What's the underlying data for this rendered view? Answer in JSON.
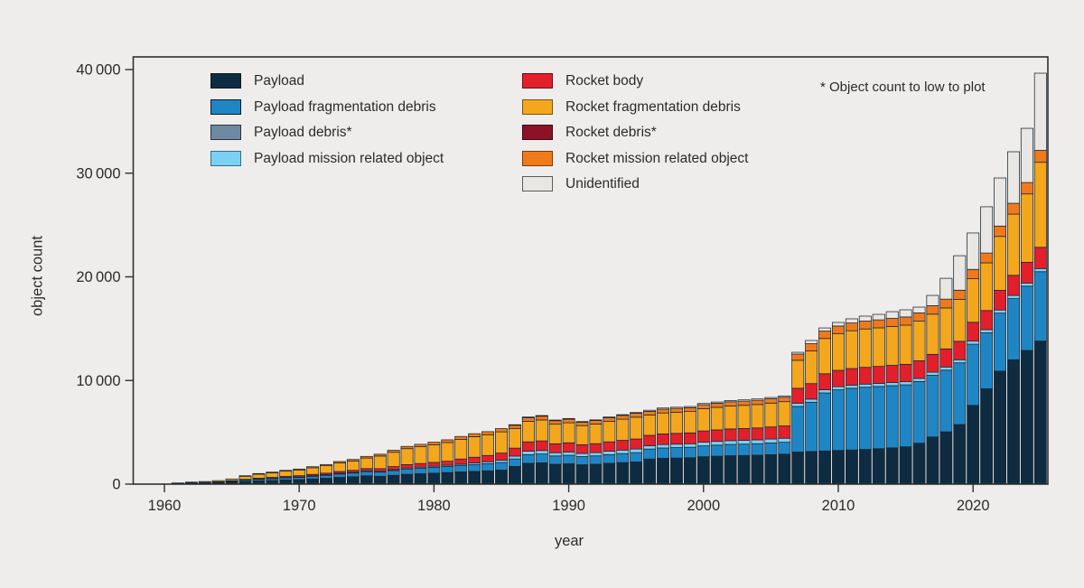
{
  "figure": {
    "title": "",
    "y_axis_label": "object count",
    "x_axis_label": "year",
    "note": "* Object count to low to plot",
    "background_color": "#eeedeb",
    "frame_color": "#2f2f2f",
    "bar_outline_color": "#17242f",
    "text_color": "#2b2b2b"
  },
  "axes": {
    "y_ticks": [
      {
        "value": 0,
        "label": "0"
      },
      {
        "value": 10000,
        "label": "10 000"
      },
      {
        "value": 20000,
        "label": "20 000"
      },
      {
        "value": 30000,
        "label": "30 000"
      },
      {
        "value": 40000,
        "label": "40 000"
      }
    ],
    "x_ticks": [
      {
        "value": 1960,
        "label": "1960"
      },
      {
        "value": 1970,
        "label": "1970"
      },
      {
        "value": 1980,
        "label": "1980"
      },
      {
        "value": 1990,
        "label": "1990"
      },
      {
        "value": 2000,
        "label": "2000"
      },
      {
        "value": 2010,
        "label": "2010"
      },
      {
        "value": 2020,
        "label": "2020"
      }
    ]
  },
  "legend": {
    "columns": [
      {
        "items": [
          {
            "key": "payload",
            "label": "Payload",
            "color": "#0d2c42",
            "border": "#10181f"
          },
          {
            "key": "payload_fragmentation_debris",
            "label": "Payload fragmentation debris",
            "color": "#1f86c6",
            "border": "#10181f"
          },
          {
            "key": "payload_debris",
            "label": "Payload debris*",
            "color": "#6e89a2",
            "border": "#2a3440"
          },
          {
            "key": "payload_mission_related_object",
            "label": "Payload mission related object",
            "color": "#7dd0f2",
            "border": "#2a6f96"
          }
        ]
      },
      {
        "items": [
          {
            "key": "rocket_body",
            "label": "Rocket body",
            "color": "#e31f2b",
            "border": "#6e0e14"
          },
          {
            "key": "rocket_fragmentation_debris",
            "label": "Rocket fragmentation debris",
            "color": "#f4a71c",
            "border": "#7a5410"
          },
          {
            "key": "rocket_debris",
            "label": "Rocket debris*",
            "color": "#8d1228",
            "border": "#3c0811"
          },
          {
            "key": "rocket_mission_related_object",
            "label": "Rocket mission related object",
            "color": "#f07a1b",
            "border": "#7a3c0c"
          },
          {
            "key": "unidentified",
            "label": "Unidentified",
            "color": "#e9e7e3",
            "border": "#5a5a5a"
          }
        ]
      }
    ]
  },
  "chart_data": {
    "type": "bar",
    "stacked": true,
    "title": "",
    "xlabel": "year",
    "ylabel": "object count",
    "ylim": [
      0,
      40000
    ],
    "xlim": [
      1957.5,
      2026
    ],
    "grid": false,
    "legend_position": "inside-top-left",
    "annotation": "* Object count to low to plot",
    "years": [
      1961,
      1962,
      1963,
      1964,
      1965,
      1966,
      1967,
      1968,
      1969,
      1970,
      1971,
      1972,
      1973,
      1974,
      1975,
      1976,
      1977,
      1978,
      1979,
      1980,
      1981,
      1982,
      1983,
      1984,
      1985,
      1986,
      1987,
      1988,
      1989,
      1990,
      1991,
      1992,
      1993,
      1994,
      1995,
      1996,
      1997,
      1998,
      1999,
      2000,
      2001,
      2002,
      2003,
      2004,
      2005,
      2006,
      2007,
      2008,
      2009,
      2010,
      2011,
      2012,
      2013,
      2014,
      2015,
      2016,
      2017,
      2018,
      2019,
      2020,
      2021,
      2022,
      2023,
      2024,
      2025
    ],
    "series": [
      {
        "key": "payload",
        "name": "Payload",
        "color": "#0d2c42",
        "values": [
          55,
          90,
          115,
          155,
          230,
          245,
          306,
          348,
          400,
          437,
          504,
          567,
          654,
          714,
          803,
          754,
          854,
          952,
          1004,
          1058,
          1117,
          1178,
          1231,
          1284,
          1360,
          1710,
          2007,
          2052,
          1917,
          1962,
          1872,
          1922,
          2007,
          2077,
          2142,
          2424,
          2497,
          2523,
          2547,
          2645,
          2695,
          2744,
          2764,
          2793,
          2842,
          2893,
          3100,
          3150,
          3200,
          3250,
          3300,
          3350,
          3420,
          3500,
          3600,
          3950,
          4550,
          5050,
          5750,
          7600,
          9200,
          10900,
          12000,
          12900,
          13800
        ]
      },
      {
        "key": "payload_fragmentation_debris",
        "name": "Payload fragmentation debris",
        "color": "#1f86c6",
        "values": [
          8,
          16,
          21,
          28,
          42,
          120,
          153,
          174,
          200,
          218,
          252,
          284,
          327,
          357,
          401,
          406,
          460,
          512,
          540,
          570,
          601,
          634,
          663,
          692,
          732,
          717,
          842,
          861,
          804,
          823,
          785,
          806,
          842,
          871,
          898,
          963,
          992,
          1002,
          1011,
          1050,
          1070,
          1089,
          1098,
          1109,
          1129,
          1149,
          4400,
          4750,
          5600,
          5850,
          5950,
          6000,
          6000,
          6000,
          5980,
          5950,
          5950,
          5950,
          5950,
          5900,
          5400,
          5600,
          5900,
          6200,
          6700
        ]
      },
      {
        "key": "payload_debris",
        "name": "Payload debris*",
        "color": "#6e89a2",
        "note": "object count too low to plot",
        "values": [
          0,
          0,
          0,
          0,
          0,
          0,
          0,
          0,
          0,
          0,
          0,
          0,
          0,
          0,
          0,
          0,
          0,
          0,
          0,
          0,
          0,
          0,
          0,
          0,
          0,
          0,
          0,
          0,
          0,
          0,
          0,
          0,
          0,
          0,
          0,
          0,
          0,
          0,
          0,
          0,
          0,
          0,
          0,
          0,
          0,
          0,
          0,
          0,
          0,
          0,
          0,
          0,
          0,
          0,
          0,
          0,
          0,
          0,
          0,
          0,
          0,
          0,
          0,
          0,
          0
        ]
      },
      {
        "key": "payload_mission_related_object",
        "name": "Payload mission related object",
        "color": "#7dd0f2",
        "values": [
          2,
          4,
          5,
          7,
          10,
          24,
          31,
          35,
          40,
          44,
          50,
          57,
          65,
          71,
          80,
          73,
          82,
          92,
          97,
          102,
          107,
          113,
          150,
          180,
          220,
          276,
          324,
          331,
          309,
          317,
          302,
          310,
          324,
          335,
          346,
          321,
          331,
          334,
          337,
          350,
          357,
          363,
          366,
          370,
          376,
          383,
          300,
          300,
          300,
          300,
          300,
          300,
          300,
          300,
          300,
          300,
          300,
          300,
          300,
          300,
          300,
          300,
          300,
          300,
          300
        ]
      },
      {
        "key": "rocket_body",
        "name": "Rocket body",
        "color": "#e31f2b",
        "values": [
          12,
          20,
          26,
          35,
          52,
          65,
          82,
          93,
          106,
          116,
          134,
          151,
          174,
          190,
          214,
          261,
          296,
          329,
          347,
          366,
          387,
          500,
          550,
          610,
          680,
          772,
          907,
          927,
          866,
          886,
          846,
          868,
          907,
          938,
          967,
          998,
          1028,
          1039,
          1049,
          1089,
          1110,
          1130,
          1138,
          1150,
          1170,
          1191,
          1450,
          1500,
          1550,
          1580,
          1600,
          1620,
          1640,
          1660,
          1680,
          1700,
          1720,
          1750,
          1780,
          1820,
          1850,
          1900,
          1950,
          2000,
          2050
        ]
      },
      {
        "key": "rocket_fragmentation_debris",
        "name": "Rocket fragmentation debris",
        "color": "#f4a71c",
        "values": [
          38,
          64,
          84,
          112,
          166,
          308,
          387,
          440,
          504,
          552,
          638,
          718,
          828,
          904,
          1016,
          1218,
          1380,
          1537,
          1621,
          1709,
          1804,
          1903,
          1989,
          2000,
          2050,
          1900,
          1975,
          2019,
          1886,
          1931,
          1842,
          1891,
          1975,
          2044,
          2108,
          1961,
          2020,
          2041,
          2060,
          2140,
          2179,
          2219,
          2236,
          2259,
          2299,
          2341,
          2700,
          3150,
          3400,
          3550,
          3650,
          3700,
          3720,
          3750,
          3780,
          3820,
          3880,
          3950,
          4050,
          4200,
          4600,
          5200,
          5900,
          6600,
          8200
        ]
      },
      {
        "key": "rocket_debris",
        "name": "Rocket debris*",
        "color": "#8d1228",
        "note": "object count too low to plot",
        "values": [
          0,
          0,
          0,
          0,
          0,
          0,
          0,
          0,
          0,
          0,
          0,
          0,
          0,
          0,
          0,
          0,
          0,
          0,
          0,
          0,
          0,
          0,
          0,
          0,
          0,
          0,
          0,
          0,
          0,
          0,
          0,
          0,
          0,
          0,
          0,
          0,
          0,
          0,
          0,
          0,
          0,
          0,
          0,
          0,
          0,
          0,
          0,
          0,
          0,
          0,
          0,
          0,
          0,
          0,
          0,
          0,
          0,
          0,
          0,
          0,
          0,
          0,
          0,
          0,
          0
        ]
      },
      {
        "key": "rocket_mission_related_object",
        "name": "Rocket mission related object",
        "color": "#f07a1b",
        "values": [
          5,
          6,
          9,
          13,
          20,
          48,
          61,
          70,
          80,
          88,
          102,
          113,
          132,
          144,
          161,
          174,
          197,
          220,
          232,
          244,
          258,
          272,
          284,
          296,
          314,
          303,
          356,
          364,
          340,
          348,
          332,
          341,
          356,
          369,
          380,
          357,
          367,
          371,
          374,
          389,
          396,
          404,
          407,
          411,
          418,
          426,
          600,
          700,
          720,
          730,
          750,
          760,
          770,
          780,
          790,
          800,
          820,
          850,
          880,
          900,
          950,
          1000,
          1050,
          1100,
          1150
        ]
      },
      {
        "key": "unidentified",
        "name": "Unidentified",
        "color": "#e9e7e3",
        "values": [
          0,
          0,
          0,
          0,
          0,
          0,
          0,
          0,
          0,
          0,
          0,
          0,
          0,
          0,
          0,
          14,
          16,
          18,
          19,
          21,
          21,
          22,
          24,
          24,
          25,
          55,
          64,
          66,
          63,
          63,
          61,
          62,
          64,
          66,
          69,
          106,
          110,
          110,
          112,
          117,
          118,
          121,
          121,
          123,
          126,
          127,
          170,
          310,
          300,
          340,
          400,
          480,
          530,
          650,
          690,
          560,
          990,
          2010,
          3330,
          3510,
          4460,
          4640,
          4970,
          5230,
          7450
        ]
      }
    ]
  }
}
